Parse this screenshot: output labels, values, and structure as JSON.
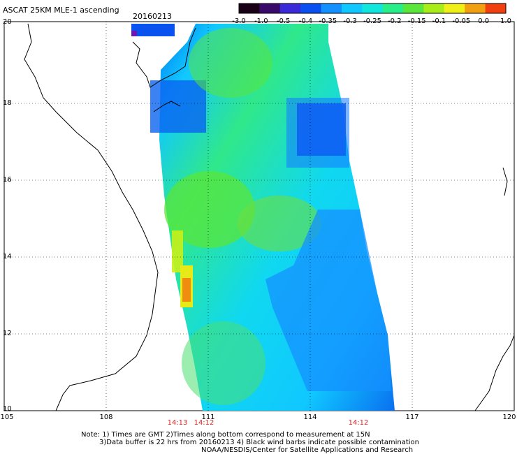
{
  "title": "ASCAT 25KM MLE-1 ascending",
  "date": "20160213",
  "colorbar": {
    "labels": [
      "-3.0",
      "-1.0",
      "-0.5",
      "-0.4",
      "-0.35",
      "-0.3",
      "-0.25",
      "-0.2",
      "-0.15",
      "-0.1",
      "-0.05",
      "0.0",
      "1.0"
    ],
    "colors": [
      "#1a0016",
      "#3a0a6a",
      "#3a2ad8",
      "#0a50f0",
      "#1490ff",
      "#10c8ff",
      "#10e6dc",
      "#28ee8a",
      "#5ae63a",
      "#a8ec1a",
      "#f0f018",
      "#f0a010",
      "#f04010"
    ]
  },
  "axes": {
    "y_labels": [
      "20",
      "18",
      "16",
      "14",
      "12",
      "10"
    ],
    "x_labels": [
      "105",
      "108",
      "111",
      "114",
      "117",
      "120"
    ]
  },
  "swath_times": [
    "14:13",
    "14:12",
    "14:12"
  ],
  "notes": [
    "Note: 1) Times are GMT 2)Times along bottom correspond to measurement at 15N",
    "3)Data buffer is 22 hrs from 20160213 4) Black wind barbs indicate possible contamination",
    "NOAA/NESDIS/Center for Satellite Applications and Research"
  ]
}
